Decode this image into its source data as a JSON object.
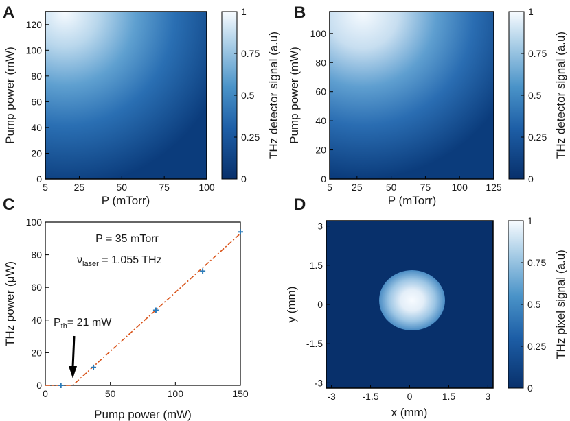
{
  "chart_data": [
    {
      "panel": "A",
      "type": "heatmap",
      "xlabel": "P (mTorr)",
      "ylabel": "Pump power (mW)",
      "xlim": [
        5,
        100
      ],
      "ylim": [
        0,
        130
      ],
      "xticks": [
        "5",
        "25",
        "50",
        "75",
        "100"
      ],
      "xtick_values": [
        5,
        25,
        50,
        75,
        100
      ],
      "yticks": [
        "0",
        "20",
        "40",
        "60",
        "80",
        "100",
        "120"
      ],
      "ytick_values": [
        0,
        20,
        40,
        60,
        80,
        100,
        120
      ],
      "colorbar": {
        "label": "THz detector signal (a.u)",
        "ticks": [
          "0",
          "0.25",
          "0.5",
          "0.75",
          "1"
        ],
        "tick_values": [
          0,
          0.25,
          0.5,
          0.75,
          1
        ]
      },
      "peak": {
        "x": 20,
        "y": 130,
        "value": 1
      }
    },
    {
      "panel": "B",
      "type": "heatmap",
      "xlabel": "P (mTorr)",
      "ylabel": "Pump power (mW)",
      "xlim": [
        5,
        125
      ],
      "ylim": [
        0,
        115
      ],
      "xticks": [
        "5",
        "25",
        "50",
        "75",
        "100",
        "125"
      ],
      "xtick_values": [
        5,
        25,
        50,
        75,
        100,
        125
      ],
      "yticks": [
        "0",
        "20",
        "40",
        "60",
        "80",
        "100"
      ],
      "ytick_values": [
        0,
        20,
        40,
        60,
        80,
        100
      ],
      "colorbar": {
        "label": "THz detector signal (a.u)",
        "ticks": [
          "0",
          "0.25",
          "0.5",
          "0.75",
          "1"
        ],
        "tick_values": [
          0,
          0.25,
          0.5,
          0.75,
          1
        ]
      },
      "peak": {
        "x": 30,
        "y": 115,
        "value": 1
      }
    },
    {
      "panel": "C",
      "type": "scatter",
      "xlabel": "Pump power (mW)",
      "ylabel": "THz power (μW)",
      "xlim": [
        0,
        150
      ],
      "ylim": [
        0,
        100
      ],
      "xticks": [
        "0",
        "50",
        "100",
        "150"
      ],
      "xtick_values": [
        0,
        50,
        100,
        150
      ],
      "yticks": [
        "0",
        "20",
        "40",
        "60",
        "80",
        "100"
      ],
      "ytick_values": [
        0,
        20,
        40,
        60,
        80,
        100
      ],
      "series": [
        {
          "points": [
            [
              12,
              0
            ],
            [
              37,
              11
            ],
            [
              85,
              46
            ],
            [
              121,
              70
            ],
            [
              150,
              94
            ]
          ],
          "color": "#2a7ab8"
        }
      ],
      "fit": {
        "threshold_x": 21,
        "points": [
          [
            0,
            0
          ],
          [
            21,
            0
          ],
          [
            150,
            93
          ]
        ],
        "color": "#d95319",
        "style": "dash-dot"
      },
      "annotations": {
        "pressure": "P = 35 mTorr",
        "laser_nu": "ν",
        "laser_sub": "laser",
        "laser_rest": " = 1.055 THz",
        "pth_main": "P",
        "pth_sub": "th",
        "pth_rest": "= 21 mW"
      }
    },
    {
      "panel": "D",
      "type": "heatmap",
      "xlabel": "x (mm)",
      "ylabel": "y (mm)",
      "xlim": [
        -3.2,
        3.2
      ],
      "ylim": [
        -3.2,
        3.2
      ],
      "xticks": [
        "-3",
        "-1.5",
        "0",
        "1.5",
        "3"
      ],
      "xtick_values": [
        -3,
        -1.5,
        0,
        1.5,
        3
      ],
      "yticks": [
        "-3",
        "-1.5",
        "0",
        "1.5",
        "3"
      ],
      "ytick_values": [
        -3,
        -1.5,
        0,
        1.5,
        3
      ],
      "colorbar": {
        "label": "THz pixel signal (a.u)",
        "ticks": [
          "0",
          "0.25",
          "0.5",
          "0.75",
          "1"
        ],
        "tick_values": [
          0,
          0.25,
          0.5,
          0.75,
          1
        ]
      },
      "spot": {
        "center": [
          0.1,
          0.1
        ],
        "radius_mm": 1.0
      }
    }
  ],
  "colors": {
    "cmap_low": "#08306b",
    "cmap_mid": "#4292c6",
    "cmap_high": "#f7fbff",
    "marker": "#2a7ab8",
    "fit_line": "#d95319"
  }
}
